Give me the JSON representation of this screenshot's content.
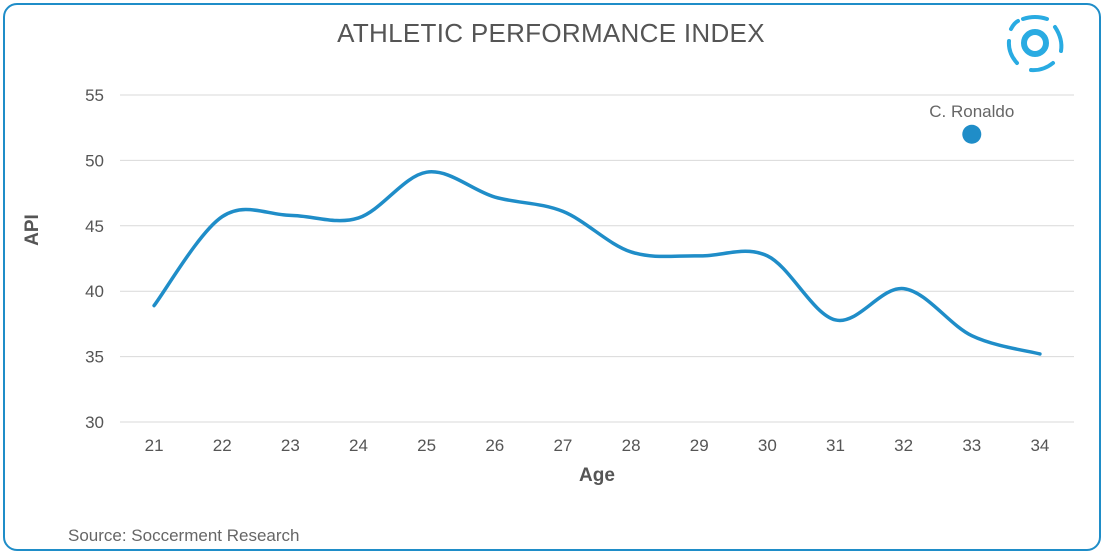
{
  "chart_data": {
    "type": "line",
    "title": "ATHLETIC PERFORMANCE INDEX",
    "xlabel": "Age",
    "ylabel": "API",
    "x": [
      21,
      22,
      23,
      24,
      25,
      26,
      27,
      28,
      29,
      30,
      31,
      32,
      33,
      34
    ],
    "xlim": [
      20.5,
      34.5
    ],
    "ylim": [
      30,
      55
    ],
    "yticks": [
      30,
      35,
      40,
      45,
      50,
      55
    ],
    "grid": true,
    "series": [
      {
        "values": [
          38.9,
          45.7,
          45.8,
          45.6,
          49.1,
          47.2,
          46.1,
          43.0,
          42.7,
          42.7,
          37.8,
          40.2,
          36.6,
          35.2
        ],
        "color": "#1f8dc8"
      }
    ],
    "annotations": [
      {
        "label": "C. Ronaldo",
        "x": 33,
        "y": 52,
        "color": "#1f8dc8"
      }
    ],
    "source": "Source: Soccerment Research"
  },
  "logo": {
    "icon": "soccerment-ball-icon",
    "color": "#29abe2"
  }
}
